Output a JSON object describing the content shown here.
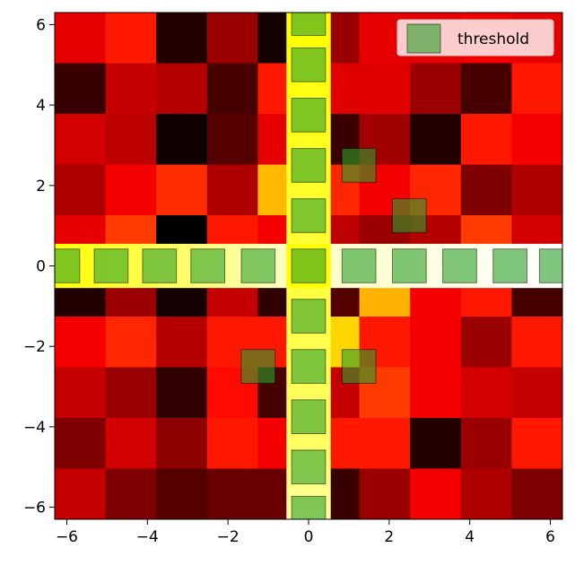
{
  "chart_data": {
    "type": "heatmap",
    "title": "",
    "xlabel": "",
    "ylabel": "",
    "colormap": "hot",
    "xlim": [
      -6.3,
      6.3
    ],
    "ylim": [
      -6.3,
      6.3
    ],
    "x_ticks": [
      -6,
      -4,
      -2,
      0,
      2,
      4,
      6
    ],
    "y_ticks": [
      -6,
      -4,
      -2,
      0,
      2,
      4,
      6
    ],
    "x_tick_labels": [
      "−6",
      "−4",
      "−2",
      "0",
      "2",
      "4",
      "6"
    ],
    "y_tick_labels": [
      "−6",
      "−4",
      "−2",
      "0",
      "2",
      "4",
      "6"
    ],
    "cell_centers": [
      -5.67,
      -4.41,
      -3.15,
      -1.89,
      -0.63,
      0.63,
      1.89,
      3.15,
      4.41,
      5.67
    ],
    "rows_top_to_bottom": [
      {
        "y_range": [
          5.04,
          6.3
        ],
        "values": [
          0.33,
          0.4,
          0.05,
          0.22,
          0.03,
          0.22,
          0.33,
          0.33,
          0.35,
          0.33
        ]
      },
      {
        "y_range": [
          3.78,
          5.04
        ],
        "values": [
          0.08,
          0.28,
          0.26,
          0.1,
          0.4,
          0.32,
          0.32,
          0.22,
          0.1,
          0.4
        ]
      },
      {
        "y_range": [
          2.52,
          3.78
        ],
        "values": [
          0.3,
          0.27,
          0.02,
          0.12,
          0.33,
          0.08,
          0.23,
          0.05,
          0.4,
          0.35
        ]
      },
      {
        "y_range": [
          1.26,
          2.52
        ],
        "values": [
          0.25,
          0.35,
          0.43,
          0.25,
          0.63,
          0.42,
          0.35,
          0.42,
          0.18,
          0.25
        ]
      },
      {
        "y_range": [
          0.0,
          1.26
        ],
        "values": [
          0.33,
          0.45,
          0.0,
          0.4,
          0.35,
          0.27,
          0.22,
          0.26,
          0.45,
          0.3
        ]
      },
      {
        "y_range": [
          -1.26,
          0.0
        ],
        "values": [
          0.05,
          0.22,
          0.03,
          0.28,
          0.07,
          0.12,
          0.62,
          0.35,
          0.4,
          0.1
        ]
      },
      {
        "y_range": [
          -2.52,
          -1.26
        ],
        "values": [
          0.35,
          0.42,
          0.26,
          0.4,
          0.4,
          0.67,
          0.4,
          0.35,
          0.22,
          0.4
        ]
      },
      {
        "y_range": [
          -3.78,
          -2.52
        ],
        "values": [
          0.28,
          0.22,
          0.07,
          0.38,
          0.1,
          0.28,
          0.45,
          0.35,
          0.3,
          0.28
        ]
      },
      {
        "y_range": [
          -5.04,
          -3.78
        ],
        "values": [
          0.18,
          0.3,
          0.2,
          0.4,
          0.35,
          0.4,
          0.4,
          0.05,
          0.22,
          0.4
        ]
      },
      {
        "y_range": [
          -6.3,
          -5.04
        ],
        "values": [
          0.28,
          0.18,
          0.12,
          0.15,
          0.15,
          0.08,
          0.22,
          0.35,
          0.25,
          0.18
        ]
      }
    ],
    "highlight_bands": [
      {
        "orientation": "vertical",
        "x_range": [
          -0.55,
          0.55
        ],
        "y_range": [
          -6.3,
          6.3
        ],
        "colors": [
          "#ffff00",
          "#ffff66",
          "#ffffa0"
        ]
      },
      {
        "orientation": "horizontal",
        "x_range": [
          -6.3,
          6.3
        ],
        "y_range": [
          -0.55,
          0.55
        ],
        "colors": [
          "#ffff00",
          "#ffffc0",
          "#ffffff"
        ]
      }
    ],
    "threshold_markers": [
      [
        -6.1,
        0.0
      ],
      [
        -4.9,
        0.0
      ],
      [
        -3.7,
        0.0
      ],
      [
        -2.5,
        0.0
      ],
      [
        -1.25,
        0.0
      ],
      [
        0.0,
        0.0
      ],
      [
        1.25,
        0.0
      ],
      [
        2.5,
        0.0
      ],
      [
        3.75,
        0.0
      ],
      [
        5.0,
        0.0
      ],
      [
        6.15,
        0.0
      ],
      [
        0.0,
        6.15
      ],
      [
        0.0,
        5.0
      ],
      [
        0.0,
        3.75
      ],
      [
        0.0,
        2.5
      ],
      [
        0.0,
        1.25
      ],
      [
        0.0,
        -1.25
      ],
      [
        0.0,
        -2.5
      ],
      [
        0.0,
        -3.75
      ],
      [
        0.0,
        -5.0
      ],
      [
        0.0,
        -6.15
      ],
      [
        1.25,
        2.5
      ],
      [
        2.5,
        1.25
      ],
      [
        -1.25,
        -2.5
      ],
      [
        1.25,
        -2.5
      ]
    ],
    "marker_half_size": 0.42,
    "marker_color": "#2ca02c",
    "marker_alpha": 0.6,
    "legend": {
      "location": "upper right",
      "entries": [
        {
          "label": "threshold",
          "color": "#2ca02c"
        }
      ]
    },
    "grid": false
  }
}
